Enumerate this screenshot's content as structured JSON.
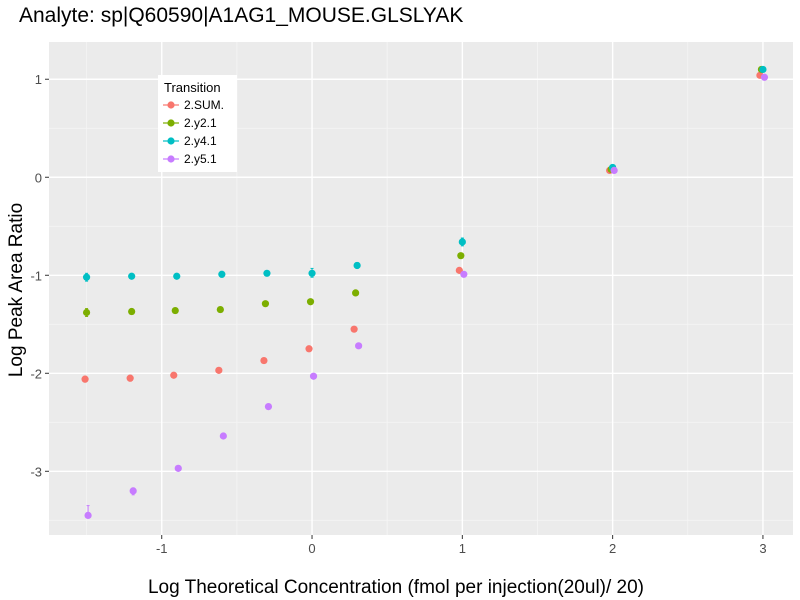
{
  "chart_data": {
    "type": "scatter",
    "title": "Analyte: sp|Q60590|A1AG1_MOUSE.GLSLYAK",
    "xlabel": "Log Theoretical Concentration (fmol per injection(20ul)/ 20)",
    "ylabel": "Log Peak Area Ratio",
    "xlim": [
      -1.75,
      3.2
    ],
    "ylim": [
      -3.65,
      1.38
    ],
    "x_ticks": [
      -1,
      0,
      1,
      2,
      3
    ],
    "x_tick_labels": [
      "-1",
      "0",
      "1",
      "2",
      "3"
    ],
    "y_ticks": [
      -3,
      -2,
      -1,
      0,
      1
    ],
    "y_tick_labels": [
      "-3",
      "-2",
      "-1",
      "0",
      "1"
    ],
    "grid": true,
    "background_color": "#EBEBEB",
    "legend": {
      "title": "Transition",
      "position": "top-left"
    },
    "series": [
      {
        "name": "2.SUM.",
        "color": "#F8766D",
        "points": [
          {
            "x": -1.51,
            "y": -2.06,
            "ylo": -2.09,
            "yhi": -2.03
          },
          {
            "x": -1.21,
            "y": -2.05,
            "ylo": -2.08,
            "yhi": -2.02
          },
          {
            "x": -0.92,
            "y": -2.02
          },
          {
            "x": -0.62,
            "y": -1.97
          },
          {
            "x": -0.32,
            "y": -1.87
          },
          {
            "x": -0.02,
            "y": -1.75
          },
          {
            "x": 0.28,
            "y": -1.55
          },
          {
            "x": 0.98,
            "y": -0.95
          },
          {
            "x": 1.98,
            "y": 0.07
          },
          {
            "x": 2.98,
            "y": 1.04
          }
        ]
      },
      {
        "name": "2.y2.1",
        "color": "#7CAE00",
        "points": [
          {
            "x": -1.5,
            "y": -1.38,
            "ylo": -1.42,
            "yhi": -1.34
          },
          {
            "x": -1.2,
            "y": -1.37
          },
          {
            "x": -0.91,
            "y": -1.36
          },
          {
            "x": -0.61,
            "y": -1.35
          },
          {
            "x": -0.31,
            "y": -1.29
          },
          {
            "x": -0.01,
            "y": -1.27
          },
          {
            "x": 0.29,
            "y": -1.18
          },
          {
            "x": 0.99,
            "y": -0.8
          },
          {
            "x": 1.99,
            "y": 0.08
          },
          {
            "x": 2.99,
            "y": 1.1
          }
        ]
      },
      {
        "name": "2.y4.1",
        "color": "#00BFC4",
        "points": [
          {
            "x": -1.5,
            "y": -1.02,
            "ylo": -1.06,
            "yhi": -0.98
          },
          {
            "x": -1.2,
            "y": -1.01
          },
          {
            "x": -0.9,
            "y": -1.01
          },
          {
            "x": -0.6,
            "y": -0.99,
            "ylo": -1.02,
            "yhi": -0.96
          },
          {
            "x": -0.3,
            "y": -0.98
          },
          {
            "x": 0.0,
            "y": -0.98,
            "ylo": -1.02,
            "yhi": -0.93
          },
          {
            "x": 0.3,
            "y": -0.9,
            "ylo": -0.93,
            "yhi": -0.87
          },
          {
            "x": 1.0,
            "y": -0.66,
            "ylo": -0.7,
            "yhi": -0.62
          },
          {
            "x": 2.0,
            "y": 0.1
          },
          {
            "x": 3.0,
            "y": 1.1
          }
        ]
      },
      {
        "name": "2.y5.1",
        "color": "#C77CFF",
        "points": [
          {
            "x": -1.49,
            "y": -3.45,
            "ylo": -3.47,
            "yhi": -3.35
          },
          {
            "x": -1.19,
            "y": -3.2,
            "ylo": -3.24,
            "yhi": -3.17
          },
          {
            "x": -0.89,
            "y": -2.97
          },
          {
            "x": -0.59,
            "y": -2.64
          },
          {
            "x": -0.29,
            "y": -2.34
          },
          {
            "x": 0.01,
            "y": -2.03
          },
          {
            "x": 0.31,
            "y": -1.72
          },
          {
            "x": 1.01,
            "y": -0.99
          },
          {
            "x": 2.01,
            "y": 0.07
          },
          {
            "x": 3.01,
            "y": 1.02
          }
        ]
      }
    ]
  }
}
